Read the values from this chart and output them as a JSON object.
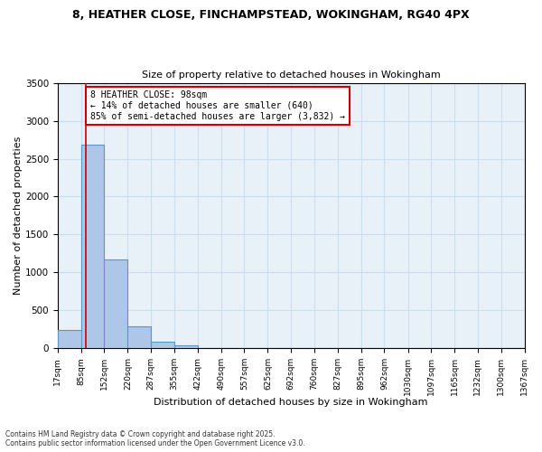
{
  "title1": "8, HEATHER CLOSE, FINCHAMPSTEAD, WOKINGHAM, RG40 4PX",
  "title2": "Size of property relative to detached houses in Wokingham",
  "xlabel": "Distribution of detached houses by size in Wokingham",
  "ylabel": "Number of detached properties",
  "bin_edges": [
    17,
    85,
    152,
    220,
    287,
    355,
    422,
    490,
    557,
    625,
    692,
    760,
    827,
    895,
    962,
    1030,
    1097,
    1165,
    1232,
    1300,
    1367
  ],
  "bar_heights": [
    240,
    2680,
    1170,
    290,
    85,
    45,
    0,
    0,
    0,
    0,
    0,
    0,
    0,
    0,
    0,
    0,
    0,
    0,
    0,
    0
  ],
  "bar_color": "#aec6e8",
  "bar_edge_color": "#5599cc",
  "grid_color": "#ccddee",
  "bg_color": "#e8f0f8",
  "vline_x": 98,
  "vline_color": "#cc0000",
  "annotation_line1": "8 HEATHER CLOSE: 98sqm",
  "annotation_line2": "← 14% of detached houses are smaller (640)",
  "annotation_line3": "85% of semi-detached houses are larger (3,832) →",
  "annotation_box_color": "#cc0000",
  "ylim": [
    0,
    3500
  ],
  "footnote1": "Contains HM Land Registry data © Crown copyright and database right 2025.",
  "footnote2": "Contains public sector information licensed under the Open Government Licence v3.0."
}
